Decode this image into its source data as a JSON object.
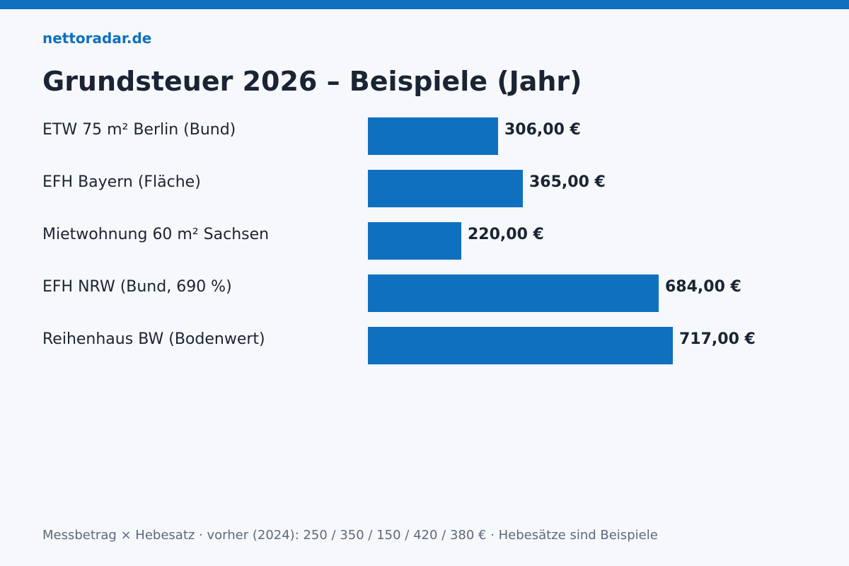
{
  "site": {
    "name": "nettoradar.de"
  },
  "colors": {
    "accent": "#0f70c0",
    "text": "#1b2433",
    "muted": "#5e6a7b",
    "background": "#f6f8fc"
  },
  "chart_data": {
    "type": "bar",
    "orientation": "horizontal",
    "title": "Grundsteuer 2026 – Beispiele (Jahr)",
    "xlabel": "",
    "ylabel": "",
    "xlim": [
      0,
      800
    ],
    "grid": false,
    "categories": [
      "ETW 75 m² Berlin (Bund)",
      "EFH Bayern (Fläche)",
      "Mietwohnung 60 m² Sachsen",
      "EFH NRW (Bund, 690 %)",
      "Reihenhaus BW (Bodenwert)"
    ],
    "values": [
      306,
      365,
      220,
      684,
      717
    ],
    "value_labels": [
      "306,00 €",
      "365,00 €",
      "220,00 €",
      "684,00 €",
      "717,00 €"
    ],
    "footnote": "Messbetrag × Hebesatz · vorher (2024): 250 / 350 / 150 / 420 / 380 € · Hebesätze sind Beispiele"
  }
}
